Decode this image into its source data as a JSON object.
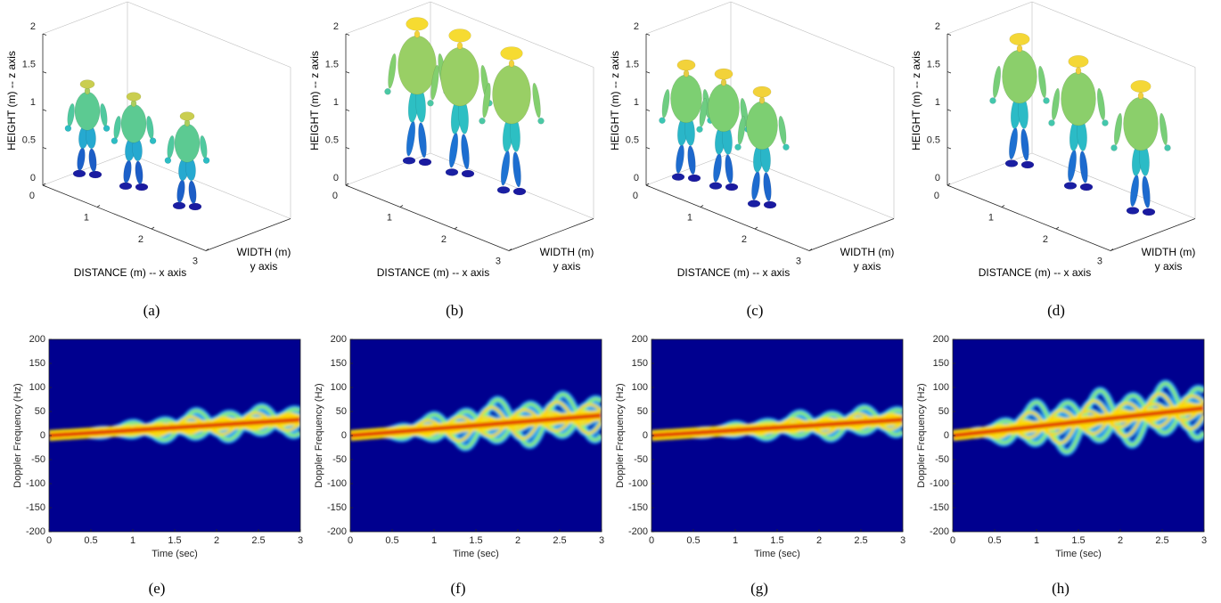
{
  "chart_data": [
    {
      "type": "3d",
      "caption": "(a)",
      "xlabel": "DISTANCE (m) -- x axis",
      "ylabel": [
        "WIDTH (m)",
        "y axis"
      ],
      "zlabel": "HEIGHT (m) -- z axis",
      "xlim": [
        0,
        3
      ],
      "xticks": [
        0,
        1,
        2,
        3
      ],
      "zlim": [
        0,
        2
      ],
      "zticks": [
        0,
        0.5,
        1,
        1.5,
        2
      ]
    },
    {
      "type": "3d",
      "caption": "(b)",
      "xlabel": "DISTANCE (m) -- x axis",
      "ylabel": [
        "WIDTH (m)",
        "y axis"
      ],
      "zlabel": "HEIGHT (m) -- z axis",
      "xlim": [
        0,
        3
      ],
      "xticks": [
        0,
        1,
        2,
        3
      ],
      "zlim": [
        0,
        2
      ],
      "zticks": [
        0,
        0.5,
        1,
        1.5,
        2
      ]
    },
    {
      "type": "3d",
      "caption": "(c)",
      "xlabel": "DISTANCE (m) -- x axis",
      "ylabel": [
        "WIDTH (m)",
        "y axis"
      ],
      "zlabel": "HEIGHT (m) -- z axis",
      "xlim": [
        0,
        3
      ],
      "xticks": [
        0,
        1,
        2,
        3
      ],
      "zlim": [
        0,
        2
      ],
      "zticks": [
        0,
        0.5,
        1,
        1.5,
        2
      ]
    },
    {
      "type": "3d",
      "caption": "(d)",
      "xlabel": "DISTANCE (m) -- x axis",
      "ylabel": [
        "WIDTH (m)",
        "y axis"
      ],
      "zlabel": "HEIGHT (m) -- z axis",
      "xlim": [
        0,
        3
      ],
      "xticks": [
        0,
        1,
        2,
        3
      ],
      "zlim": [
        0,
        2
      ],
      "zticks": [
        0,
        0.5,
        1,
        1.5,
        2
      ]
    },
    {
      "type": "spectrogram",
      "caption": "(e)",
      "xlabel": "Time (sec)",
      "ylabel": "Doppler Frequency (Hz)",
      "xlim": [
        0,
        3
      ],
      "xticks": [
        0,
        0.5,
        1,
        1.5,
        2,
        2.5,
        3
      ],
      "ylim": [
        -200,
        200
      ],
      "yticks": [
        -200,
        -150,
        -100,
        -50,
        0,
        50,
        100,
        150,
        200
      ]
    },
    {
      "type": "spectrogram",
      "caption": "(f)",
      "xlabel": "Time (sec)",
      "ylabel": "Doppler Frequency (Hz)",
      "xlim": [
        0,
        3
      ],
      "xticks": [
        0,
        0.5,
        1,
        1.5,
        2,
        2.5,
        3
      ],
      "ylim": [
        -200,
        200
      ],
      "yticks": [
        -200,
        -150,
        -100,
        -50,
        0,
        50,
        100,
        150,
        200
      ]
    },
    {
      "type": "spectrogram",
      "caption": "(g)",
      "xlabel": "Time (sec)",
      "ylabel": "Doppler Frequency (Hz)",
      "xlim": [
        0,
        3
      ],
      "xticks": [
        0,
        0.5,
        1,
        1.5,
        2,
        2.5,
        3
      ],
      "ylim": [
        -200,
        200
      ],
      "yticks": [
        -200,
        -150,
        -100,
        -50,
        0,
        50,
        100,
        150,
        200
      ]
    },
    {
      "type": "spectrogram",
      "caption": "(h)",
      "xlabel": "Time (sec)",
      "ylabel": "Doppler Frequency (Hz)",
      "xlim": [
        0,
        3
      ],
      "xticks": [
        0,
        0.5,
        1,
        1.5,
        2,
        2.5,
        3
      ],
      "ylim": [
        -200,
        200
      ],
      "yticks": [
        -200,
        -150,
        -100,
        -50,
        0,
        50,
        100,
        150,
        200
      ]
    }
  ]
}
